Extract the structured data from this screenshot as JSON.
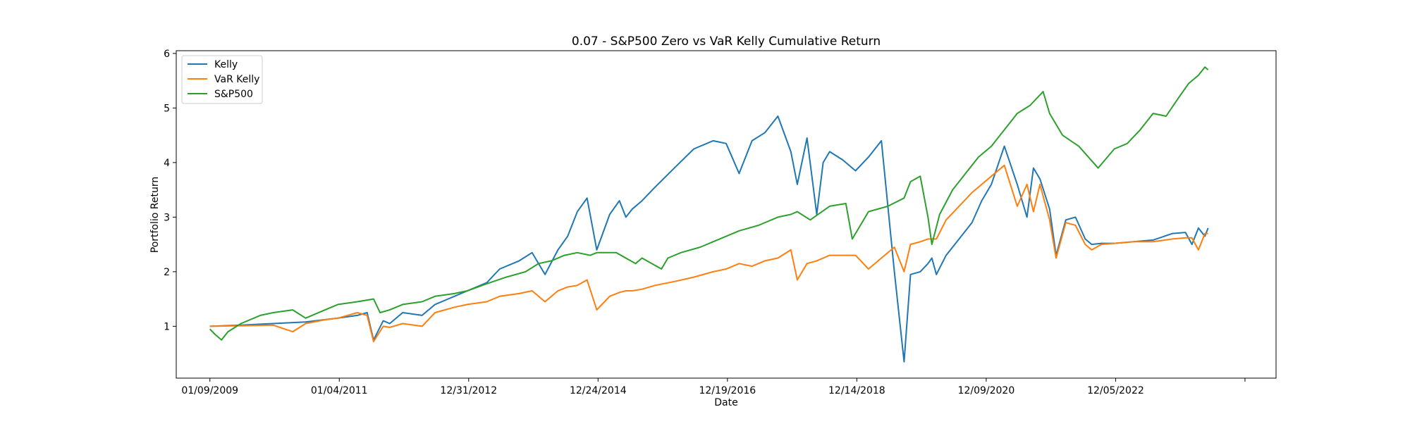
{
  "chart_data": {
    "type": "line",
    "title": "0.07 - S&P500 Zero vs VaR Kelly Cumulative Return",
    "xlabel": "Date",
    "ylabel": "Portfolio Return",
    "x_tick_labels": [
      "01/09/2009",
      "01/04/2011",
      "12/31/2012",
      "12/24/2014",
      "12/19/2016",
      "12/14/2018",
      "12/09/2020",
      "12/05/2022"
    ],
    "y_ticks": [
      1,
      2,
      3,
      4,
      5,
      6
    ],
    "xlim": [
      2008.5,
      2025.5
    ],
    "ylim": [
      0.05,
      6.05
    ],
    "grid": false,
    "legend_position": "top-left",
    "series": [
      {
        "name": "Kelly",
        "color": "#1f77b4",
        "x": [
          2009.02,
          2009.5,
          2010.0,
          2010.5,
          2011.0,
          2011.3,
          2011.45,
          2011.55,
          2011.7,
          2011.8,
          2012.0,
          2012.3,
          2012.5,
          2012.8,
          2013.0,
          2013.3,
          2013.5,
          2013.8,
          2014.0,
          2014.2,
          2014.4,
          2014.55,
          2014.7,
          2014.85,
          2015.0,
          2015.2,
          2015.35,
          2015.45,
          2015.55,
          2015.7,
          2015.9,
          2016.2,
          2016.5,
          2016.8,
          2017.0,
          2017.2,
          2017.4,
          2017.6,
          2017.8,
          2018.0,
          2018.1,
          2018.25,
          2018.4,
          2018.5,
          2018.6,
          2018.8,
          2019.0,
          2019.2,
          2019.4,
          2019.6,
          2019.75,
          2019.85,
          2020.0,
          2020.12,
          2020.18,
          2020.25,
          2020.4,
          2020.6,
          2020.8,
          2020.95,
          2021.1,
          2021.3,
          2021.5,
          2021.65,
          2021.75,
          2021.85,
          2022.0,
          2022.1,
          2022.25,
          2022.4,
          2022.55,
          2022.65,
          2022.8,
          2023.0,
          2023.3,
          2023.6,
          2023.9,
          2024.1,
          2024.2,
          2024.3,
          2024.4,
          2024.45
        ],
        "y": [
          1.0,
          1.02,
          1.05,
          1.08,
          1.15,
          1.2,
          1.25,
          0.75,
          1.1,
          1.05,
          1.25,
          1.2,
          1.4,
          1.55,
          1.65,
          1.8,
          2.05,
          2.2,
          2.35,
          1.95,
          2.4,
          2.65,
          3.1,
          3.35,
          2.4,
          3.05,
          3.3,
          3.0,
          3.15,
          3.3,
          3.55,
          3.9,
          4.25,
          4.4,
          4.35,
          3.8,
          4.4,
          4.55,
          4.85,
          4.2,
          3.6,
          4.45,
          3.05,
          4.0,
          4.2,
          4.05,
          3.85,
          4.1,
          4.4,
          2.0,
          0.35,
          1.95,
          2.0,
          2.15,
          2.25,
          1.95,
          2.3,
          2.6,
          2.9,
          3.3,
          3.6,
          4.3,
          3.6,
          3.0,
          3.9,
          3.7,
          3.15,
          2.3,
          2.95,
          3.0,
          2.6,
          2.5,
          2.52,
          2.52,
          2.55,
          2.58,
          2.7,
          2.72,
          2.5,
          2.8,
          2.65,
          2.8
        ]
      },
      {
        "name": "VaR Kelly",
        "color": "#ff7f0e",
        "x": [
          2009.02,
          2009.5,
          2010.0,
          2010.3,
          2010.5,
          2010.8,
          2011.0,
          2011.3,
          2011.45,
          2011.55,
          2011.7,
          2011.8,
          2012.0,
          2012.3,
          2012.5,
          2012.8,
          2013.0,
          2013.3,
          2013.5,
          2013.8,
          2014.0,
          2014.2,
          2014.4,
          2014.55,
          2014.7,
          2014.85,
          2015.0,
          2015.2,
          2015.35,
          2015.45,
          2015.55,
          2015.7,
          2015.9,
          2016.2,
          2016.5,
          2016.8,
          2017.0,
          2017.2,
          2017.4,
          2017.6,
          2017.8,
          2018.0,
          2018.1,
          2018.25,
          2018.4,
          2018.5,
          2018.6,
          2018.8,
          2019.0,
          2019.2,
          2019.4,
          2019.6,
          2019.75,
          2019.85,
          2020.0,
          2020.12,
          2020.25,
          2020.4,
          2020.6,
          2020.8,
          2020.95,
          2021.1,
          2021.3,
          2021.5,
          2021.65,
          2021.75,
          2021.85,
          2022.0,
          2022.1,
          2022.25,
          2022.4,
          2022.55,
          2022.65,
          2022.8,
          2023.0,
          2023.3,
          2023.6,
          2023.9,
          2024.1,
          2024.2,
          2024.3,
          2024.4,
          2024.45
        ],
        "y": [
          1.0,
          1.01,
          1.02,
          0.9,
          1.05,
          1.12,
          1.15,
          1.25,
          1.2,
          0.72,
          1.0,
          0.98,
          1.05,
          1.0,
          1.25,
          1.35,
          1.4,
          1.45,
          1.55,
          1.6,
          1.65,
          1.45,
          1.65,
          1.72,
          1.75,
          1.85,
          1.3,
          1.55,
          1.62,
          1.65,
          1.65,
          1.68,
          1.75,
          1.82,
          1.9,
          2.0,
          2.05,
          2.15,
          2.1,
          2.2,
          2.25,
          2.4,
          1.85,
          2.15,
          2.2,
          2.25,
          2.3,
          2.3,
          2.3,
          2.05,
          2.25,
          2.45,
          2.0,
          2.5,
          2.55,
          2.6,
          2.6,
          2.95,
          3.2,
          3.45,
          3.6,
          3.75,
          3.95,
          3.2,
          3.6,
          3.1,
          3.6,
          2.95,
          2.25,
          2.9,
          2.85,
          2.5,
          2.4,
          2.5,
          2.52,
          2.55,
          2.55,
          2.6,
          2.62,
          2.62,
          2.4,
          2.7,
          2.7
        ]
      },
      {
        "name": "S&P500",
        "color": "#2ca02c",
        "x": [
          2009.02,
          2009.1,
          2009.2,
          2009.3,
          2009.5,
          2009.8,
          2010.0,
          2010.3,
          2010.5,
          2010.8,
          2011.0,
          2011.3,
          2011.55,
          2011.65,
          2011.8,
          2012.0,
          2012.3,
          2012.5,
          2012.8,
          2013.0,
          2013.3,
          2013.6,
          2013.9,
          2014.1,
          2014.3,
          2014.5,
          2014.7,
          2014.9,
          2015.0,
          2015.3,
          2015.6,
          2015.7,
          2016.0,
          2016.1,
          2016.3,
          2016.6,
          2016.9,
          2017.2,
          2017.5,
          2017.8,
          2018.0,
          2018.1,
          2018.3,
          2018.6,
          2018.85,
          2018.95,
          2019.2,
          2019.5,
          2019.75,
          2019.85,
          2020.0,
          2020.12,
          2020.18,
          2020.3,
          2020.5,
          2020.7,
          2020.9,
          2021.1,
          2021.3,
          2021.5,
          2021.7,
          2021.9,
          2022.0,
          2022.2,
          2022.45,
          2022.75,
          2023.0,
          2023.2,
          2023.4,
          2023.6,
          2023.8,
          2024.0,
          2024.15,
          2024.3,
          2024.4,
          2024.45
        ],
        "y": [
          0.95,
          0.85,
          0.75,
          0.9,
          1.05,
          1.2,
          1.25,
          1.3,
          1.15,
          1.3,
          1.4,
          1.45,
          1.5,
          1.25,
          1.3,
          1.4,
          1.45,
          1.55,
          1.6,
          1.65,
          1.78,
          1.9,
          2.0,
          2.15,
          2.2,
          2.3,
          2.35,
          2.3,
          2.35,
          2.35,
          2.15,
          2.25,
          2.05,
          2.25,
          2.35,
          2.45,
          2.6,
          2.75,
          2.85,
          3.0,
          3.05,
          3.1,
          2.95,
          3.2,
          3.25,
          2.6,
          3.1,
          3.2,
          3.35,
          3.65,
          3.75,
          3.0,
          2.5,
          3.05,
          3.5,
          3.8,
          4.1,
          4.3,
          4.6,
          4.9,
          5.05,
          5.3,
          4.9,
          4.5,
          4.3,
          3.9,
          4.25,
          4.35,
          4.6,
          4.9,
          4.85,
          5.2,
          5.45,
          5.6,
          5.75,
          5.7
        ]
      }
    ]
  }
}
